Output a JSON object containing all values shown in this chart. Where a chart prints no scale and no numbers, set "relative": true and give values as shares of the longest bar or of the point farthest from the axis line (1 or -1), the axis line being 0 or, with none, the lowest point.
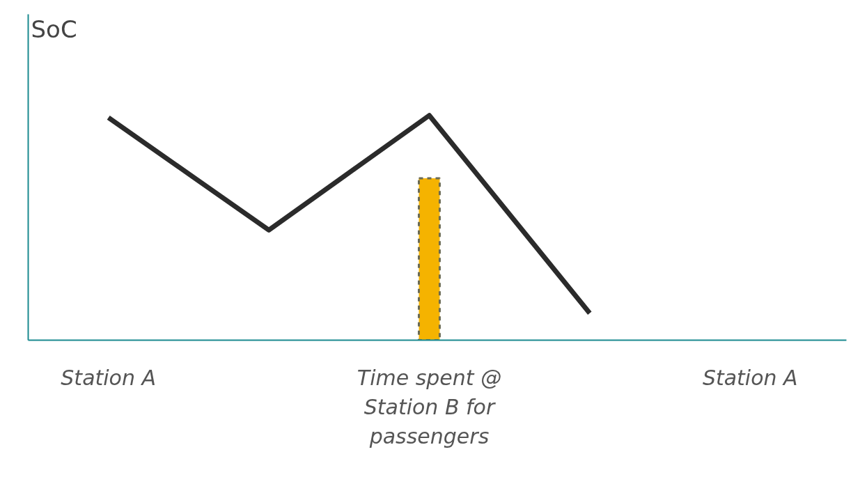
{
  "chart_data": {
    "type": "line",
    "relative": true,
    "ylabel": "SoC",
    "categories": [
      "Station A",
      null,
      "Time spent @ Station B for passengers",
      null,
      "Station A"
    ],
    "series": [
      {
        "type": "bar",
        "color": "#f5b300",
        "values": [
          null,
          null,
          0.72,
          null,
          null
        ],
        "line_style": "dashed"
      },
      {
        "color": "#2b2b2b",
        "values": [
          0.99,
          0.49,
          1.0,
          0.12,
          null
        ]
      }
    ],
    "grid": false
  }
}
